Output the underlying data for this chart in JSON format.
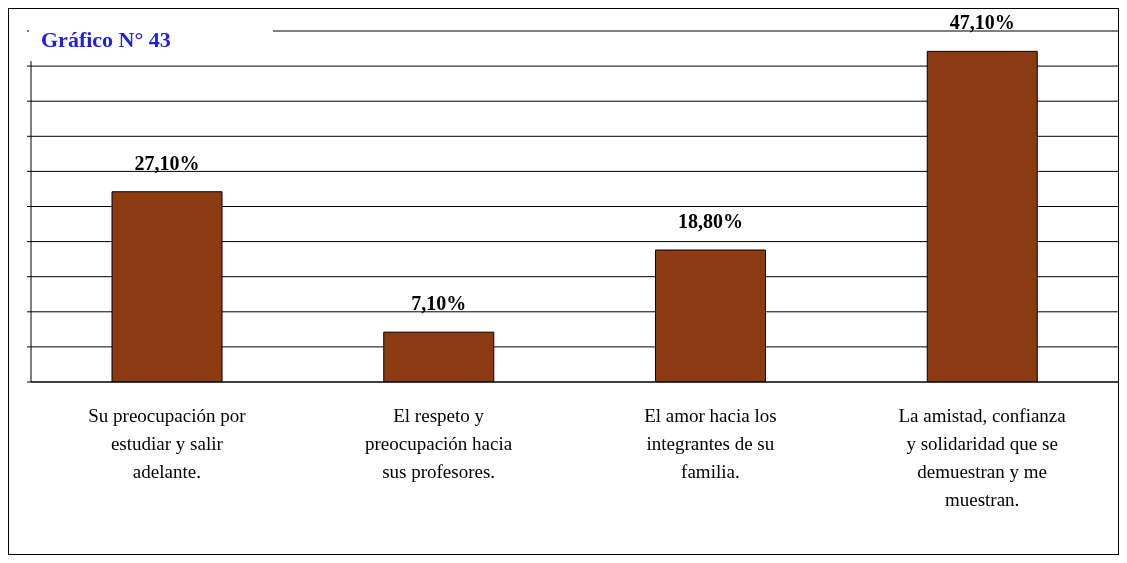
{
  "chart_data": {
    "type": "bar",
    "title": "Gráfico N° 43",
    "categories": [
      "Su preocupación por estudiar y salir adelante.",
      "El respeto y preocupación hacia sus profesores.",
      "El amor hacia los integrantes de su familia.",
      "La amistad, confianza y solidaridad que se demuestran y me muestran."
    ],
    "values": [
      27.1,
      7.1,
      18.8,
      47.1
    ],
    "value_labels": [
      "27,10%",
      "7,10%",
      "18,80%",
      "47,10%"
    ],
    "color": "#8b3a12",
    "ylim": [
      0,
      50
    ],
    "yticks": [
      {
        "value": 0,
        "label": null
      },
      {
        "value": 5,
        "label": null
      },
      {
        "value": 10,
        "label": null
      },
      {
        "value": 15,
        "label": null
      },
      {
        "value": 20,
        "label": null
      },
      {
        "value": 25,
        "label": null
      },
      {
        "value": 30,
        "label": null
      },
      {
        "value": 35,
        "label": null
      },
      {
        "value": 40,
        "label": null
      },
      {
        "value": 45,
        "label": null
      },
      {
        "value": 50,
        "label": null
      }
    ],
    "grid": "y",
    "legend": false
  }
}
